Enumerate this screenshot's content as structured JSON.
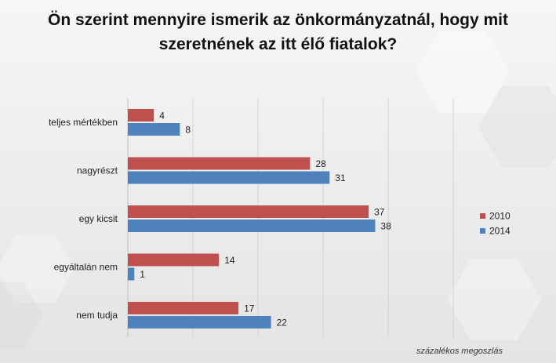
{
  "title_line1": "Ön szerint mennyire ismerik az önkormányzatnál, hogy mit",
  "title_line2": "szeretnének az itt élő fiatalok?",
  "footnote": "százalékos megoszlás",
  "colors": {
    "s2010": "#c0504d",
    "s2014": "#4f81bd"
  },
  "chart_data": {
    "type": "bar",
    "orientation": "horizontal",
    "title": "Ön szerint mennyire ismerik az önkormányzatnál, hogy mit szeretnének az itt élő fiatalok?",
    "categories": [
      "teljes mértékben",
      "nagyrészt",
      "egy kicsit",
      "egyáltalán nem",
      "nem tudja"
    ],
    "series": [
      {
        "name": "2010",
        "values": [
          4,
          28,
          37,
          14,
          17
        ]
      },
      {
        "name": "2014",
        "values": [
          8,
          31,
          38,
          1,
          22
        ]
      }
    ],
    "xlim": [
      0,
      50
    ],
    "grid": true,
    "legend": "right"
  }
}
